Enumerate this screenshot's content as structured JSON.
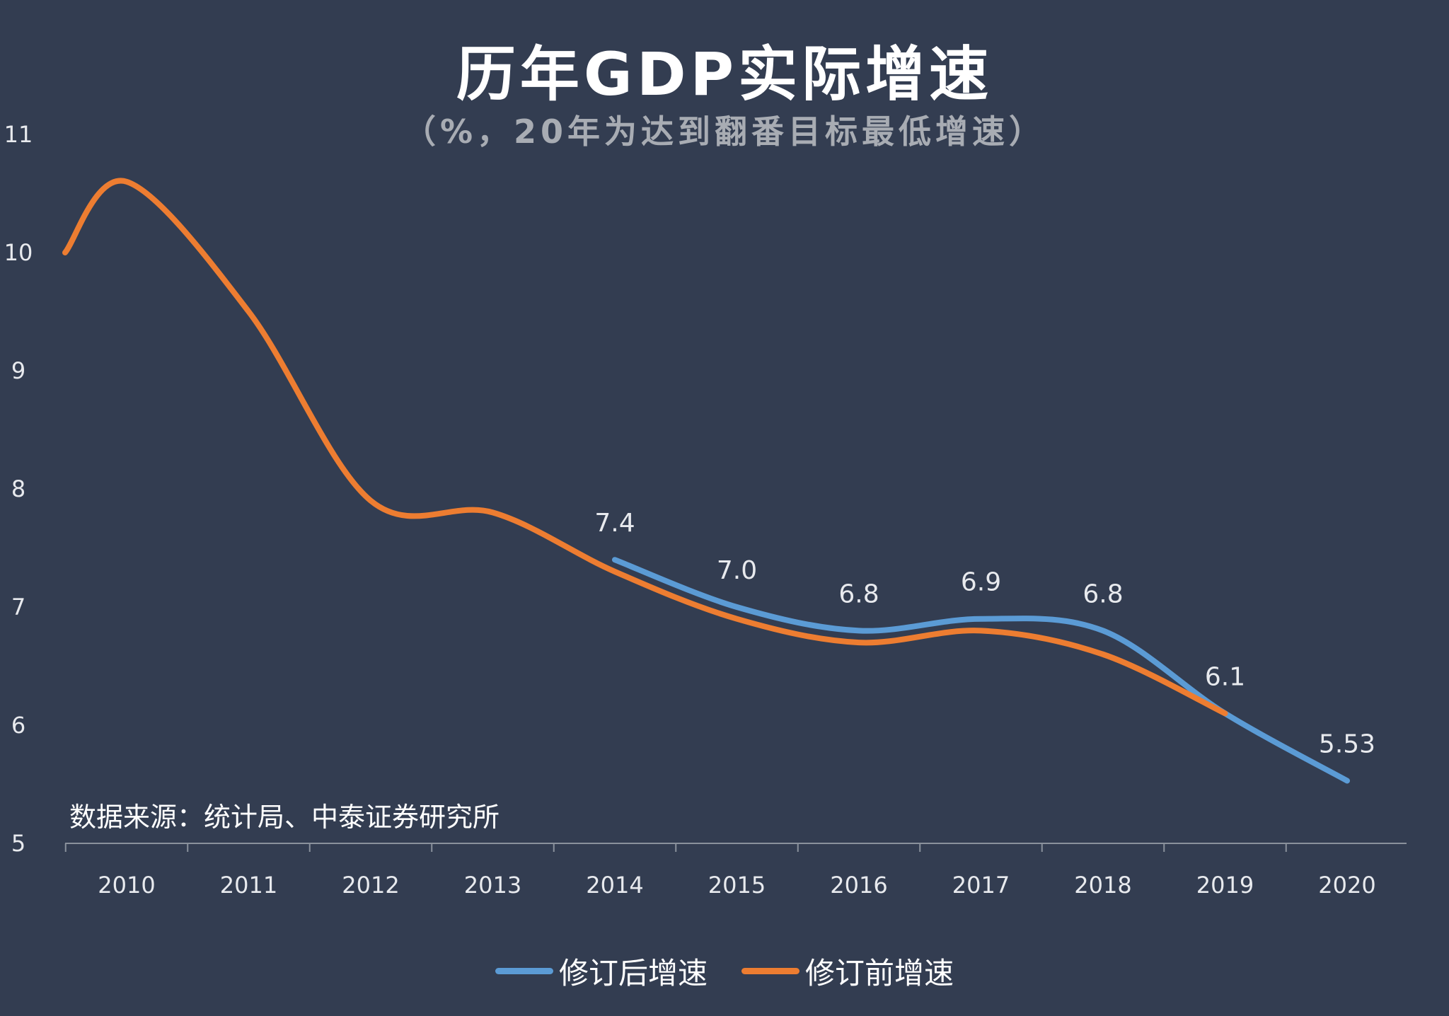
{
  "title": "历年GDP实际增速",
  "subtitle": "（%，20年为达到翻番目标最低增速）",
  "source": "数据来源：统计局、中泰证券研究所",
  "colors": {
    "background": "#333d51",
    "revised": "#5b9bd5",
    "original": "#ed7d31",
    "text": "#e8eaee"
  },
  "chart_data": {
    "type": "line",
    "title": "历年GDP实际增速",
    "subtitle": "（%，20年为达到翻番目标最低增速）",
    "categories": [
      "2010",
      "2011",
      "2012",
      "2013",
      "2014",
      "2015",
      "2016",
      "2017",
      "2018",
      "2019",
      "2020"
    ],
    "ylim": [
      5,
      11
    ],
    "yticks": [
      "5",
      "6",
      "7",
      "8",
      "9",
      "10",
      "11"
    ],
    "grid": false,
    "legend": "bottom",
    "series": [
      {
        "name": "修订后增速",
        "color": "#5b9bd5",
        "values": [
          null,
          null,
          null,
          null,
          7.4,
          7.0,
          6.8,
          6.9,
          6.8,
          6.1,
          5.53
        ],
        "labels": [
          "",
          "",
          "",
          "",
          "7.4",
          "7.0",
          "6.8",
          "6.9",
          "6.8",
          "6.1",
          "5.53"
        ]
      },
      {
        "name": "修订前增速",
        "color": "#ed7d31",
        "values": [
          10.6,
          9.5,
          7.9,
          7.8,
          7.3,
          6.9,
          6.7,
          6.8,
          6.6,
          6.1,
          null
        ]
      }
    ]
  }
}
